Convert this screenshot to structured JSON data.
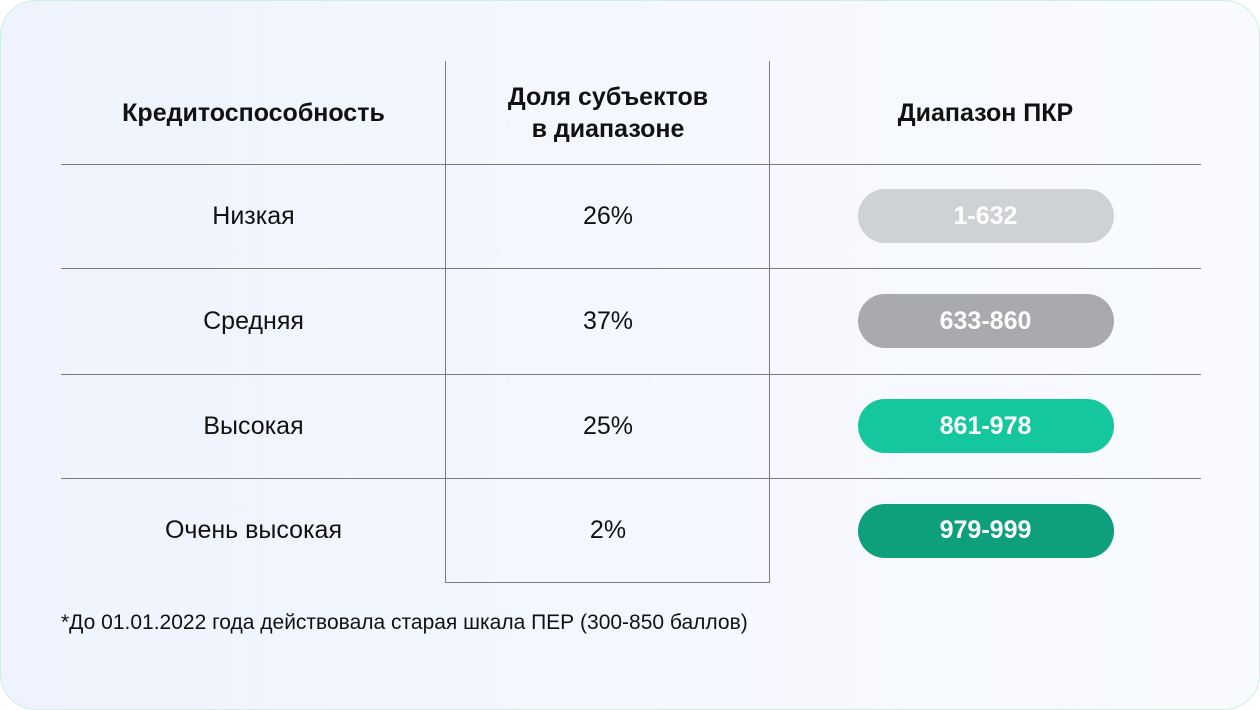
{
  "table": {
    "headers": {
      "col1": "Кредитоспособность",
      "col2_line1": "Доля субъектов",
      "col2_line2": "в диапазоне",
      "col3": "Диапазон ПКР"
    },
    "rows": [
      {
        "level": "Низкая",
        "share": "26%",
        "range": "1-632",
        "pill_color": "#ced2d6"
      },
      {
        "level": "Средняя",
        "share": "37%",
        "range": "633-860",
        "pill_color": "#a8aaad"
      },
      {
        "level": "Высокая",
        "share": "25%",
        "range": "861-978",
        "pill_color": "#14c79d"
      },
      {
        "level": "Очень высокая",
        "share": "2%",
        "range": "979-999",
        "pill_color": "#0e9f7d"
      }
    ]
  },
  "footnote": "*До 01.01.2022 года действовала старая шкала ПЕР (300-850 баллов)"
}
